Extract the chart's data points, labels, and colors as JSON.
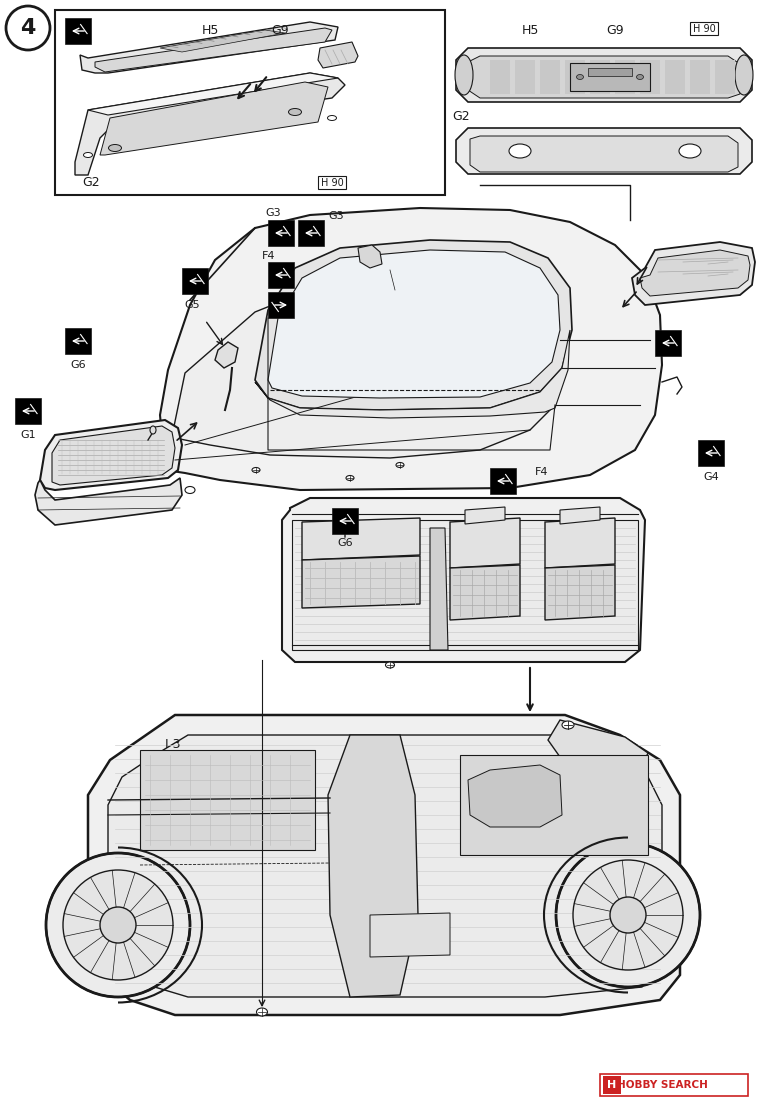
{
  "page_bg": "#ffffff",
  "line_color": "#1a1a1a",
  "step_num": "4",
  "labels": {
    "H5": "H5",
    "G9": "G9",
    "H90": "H 90",
    "G2": "G2",
    "G3": "G3",
    "F4": "F4",
    "G5": "G5",
    "G6": "G6",
    "G1": "G1",
    "G4": "G4",
    "I3": "I 3",
    "F4b": "F4"
  },
  "hobby_search": "HOBBY SEARCH"
}
